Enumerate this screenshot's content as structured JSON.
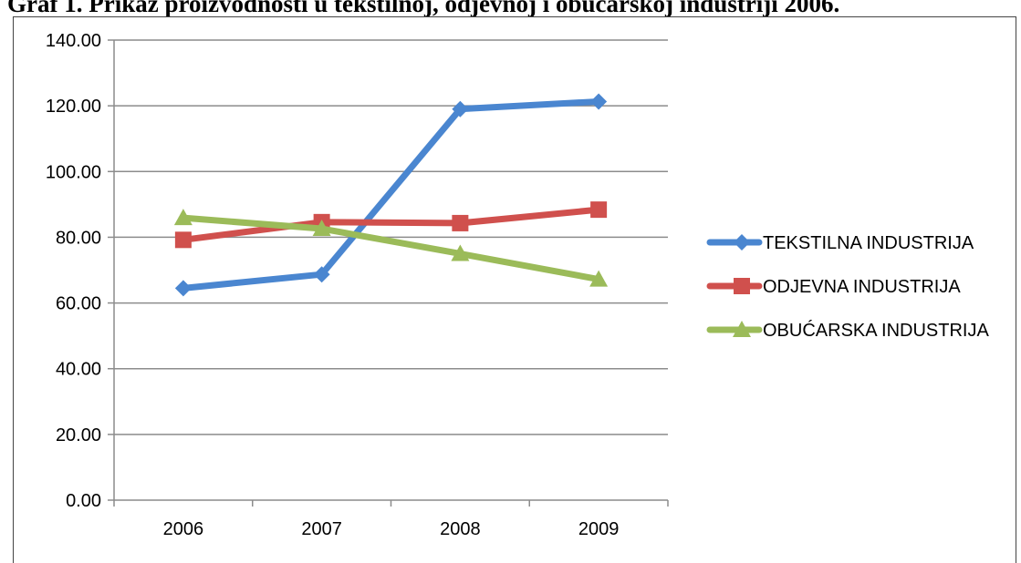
{
  "title": "Graf 1. Prikaz proizvodnosti u tekstilnoj, odjevnoj i obućarskoj industriji 2006.",
  "chart_data": {
    "type": "line",
    "title": "",
    "xlabel": "",
    "ylabel": "",
    "categories": [
      "2006",
      "2007",
      "2008",
      "2009"
    ],
    "ylim": [
      0,
      140
    ],
    "yticks": [
      "0.00",
      "20.00",
      "40.00",
      "60.00",
      "80.00",
      "100.00",
      "120.00",
      "140.00"
    ],
    "grid": true,
    "legend_position": "right",
    "series": [
      {
        "name": "TEKSTILNA INDUSTRIJA",
        "values": [
          64.5,
          68.7,
          119.0,
          121.3
        ],
        "color": "#4a86d0",
        "marker": "diamond"
      },
      {
        "name": "ODJEVNA INDUSTRIJA",
        "values": [
          79.2,
          84.6,
          84.3,
          88.4
        ],
        "color": "#d0504d",
        "marker": "square"
      },
      {
        "name": "OBUĆARSKA INDUSTRIJA",
        "values": [
          85.9,
          82.6,
          75.0,
          67.2
        ],
        "color": "#9bbb59",
        "marker": "triangle"
      }
    ]
  }
}
